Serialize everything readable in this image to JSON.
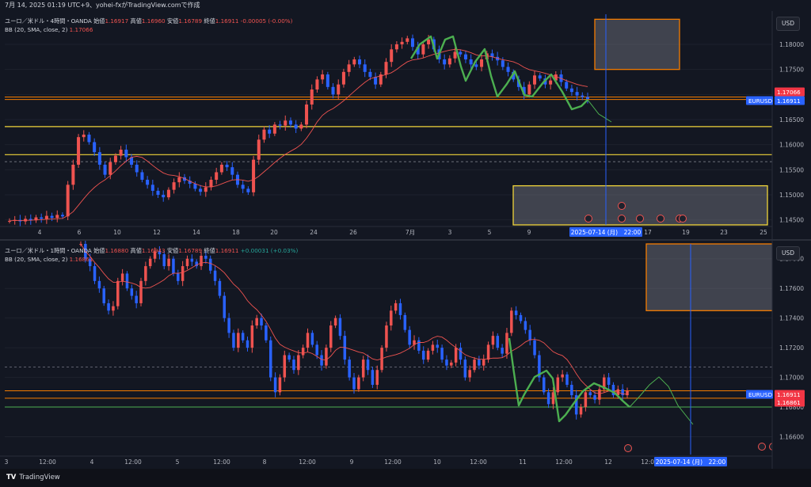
{
  "caption": "7月 14, 2025 01:19 UTC+9、yohei-fxがTradingView.comで作成",
  "footer_brand": "TradingView",
  "colors": {
    "bg": "#131722",
    "up": "#ef5350",
    "down": "#2962ff",
    "grid": "#1e222d",
    "orange": "#f57c00",
    "yellow": "#f0d43a",
    "green": "#4caf50",
    "axis_text": "#b2b5be",
    "cursor": "#2962ff"
  },
  "panels": [
    {
      "name": "4h",
      "header": {
        "symbol": "ユーロ／米ドル・4時間・OANDA",
        "o_label": "始値",
        "o": "1.16917",
        "h_label": "高値",
        "h": "1.16960",
        "l_label": "安値",
        "l": "1.16789",
        "c_label": "終値",
        "c": "1.16911",
        "chg": "-0.00005 (-0.00%)"
      },
      "indicator": {
        "label": "BB (20, SMA, close, 2)",
        "value": "1.17066"
      },
      "currency": "USD",
      "price_ticks": [
        "1.18000",
        "1.17500",
        "1.17000",
        "1.16500",
        "1.16000",
        "1.15500",
        "1.15000",
        "1.14500"
      ],
      "time_ticks": [
        "4",
        "6",
        "10",
        "12",
        "14",
        "18",
        "20",
        "24",
        "26",
        "7月",
        "3",
        "5",
        "9",
        "17",
        "19",
        "23",
        "25"
      ],
      "cursor_label": "2025-07-14 (月)　22:00",
      "price_labels": [
        {
          "text": "1.17066",
          "kind": "bb"
        },
        {
          "text": "EURUSD",
          "kind": "sym"
        },
        {
          "text": "1.16911",
          "kind": "price"
        }
      ]
    },
    {
      "name": "1h",
      "header": {
        "symbol": "ユーロ／米ドル・1時間・OANDA",
        "o_label": "始値",
        "o": "1.16880",
        "h_label": "高値",
        "h": "1.16943",
        "l_label": "安値",
        "l": "1.16789",
        "c_label": "終値",
        "c": "1.16911",
        "chg": "+0.00031 (+0.03%)"
      },
      "indicator": {
        "label": "BB (20, SMA, close, 2)",
        "value": "1.16861"
      },
      "currency": "USD",
      "price_ticks": [
        "1.17800",
        "1.17600",
        "1.17400",
        "1.17200",
        "1.17000",
        "1.16800",
        "1.16600"
      ],
      "time_ticks": [
        "3",
        "12:00",
        "4",
        "12:00",
        "5",
        "12:00",
        "8",
        "12:00",
        "9",
        "12:00",
        "10",
        "12:00",
        "11",
        "12:00",
        "12",
        "12:00"
      ],
      "cursor_label": "2025-07-14 (月)　22:00",
      "price_labels": [
        {
          "text": "EURUSD",
          "kind": "sym"
        },
        {
          "text": "1.16911",
          "kind": "price"
        },
        {
          "text": "1.16861",
          "kind": "bb"
        }
      ]
    }
  ],
  "chart_data": [
    {
      "type": "candlestick",
      "title": "ユーロ／米ドル・4時間・OANDA",
      "ylim": [
        1.144,
        1.186
      ],
      "hlines_orange": [
        1.169,
        1.1695
      ],
      "hlines_yellow": [
        1.1636,
        1.158
      ],
      "hline_dashed": 1.1566,
      "close_series": [
        1.1448,
        1.145,
        1.1447,
        1.1452,
        1.1449,
        1.1455,
        1.1452,
        1.1458,
        1.1454,
        1.146,
        1.1457,
        1.152,
        1.156,
        1.1615,
        1.162,
        1.1605,
        1.1585,
        1.156,
        1.154,
        1.1565,
        1.1578,
        1.159,
        1.1575,
        1.156,
        1.1545,
        1.153,
        1.152,
        1.1508,
        1.15,
        1.1495,
        1.151,
        1.1525,
        1.1535,
        1.1528,
        1.1522,
        1.1512,
        1.1506,
        1.1515,
        1.153,
        1.1545,
        1.156,
        1.1555,
        1.154,
        1.152,
        1.1512,
        1.1505,
        1.157,
        1.161,
        1.163,
        1.1622,
        1.164,
        1.1638,
        1.1648,
        1.164,
        1.1632,
        1.164,
        1.168,
        1.171,
        1.173,
        1.174,
        1.1715,
        1.17,
        1.172,
        1.1745,
        1.176,
        1.177,
        1.176,
        1.1745,
        1.1735,
        1.172,
        1.174,
        1.1765,
        1.179,
        1.18,
        1.1805,
        1.1812,
        1.1795,
        1.178,
        1.18,
        1.181,
        1.179,
        1.177,
        1.176,
        1.1772,
        1.1785,
        1.178,
        1.177,
        1.176,
        1.1755,
        1.177,
        1.1782,
        1.1775,
        1.1768,
        1.1755,
        1.1745,
        1.173,
        1.1715,
        1.17,
        1.172,
        1.1738,
        1.1732,
        1.172,
        1.1728,
        1.174,
        1.1725,
        1.1712,
        1.1705,
        1.1698,
        1.1695,
        1.1691
      ]
    },
    {
      "type": "candlestick",
      "title": "ユーロ／米ドル・1時間・OANDA",
      "ylim": [
        1.1648,
        1.179
      ],
      "hlines_orange": [
        1.1691,
        1.1686
      ],
      "hline_green": 1.168,
      "hline_dashed": 1.1707,
      "close_series": [
        1.179,
        1.178,
        1.1775,
        1.1765,
        1.176,
        1.175,
        1.1745,
        1.1748,
        1.1765,
        1.177,
        1.176,
        1.1755,
        1.175,
        1.1765,
        1.1775,
        1.178,
        1.1785,
        1.1783,
        1.1775,
        1.178,
        1.177,
        1.1765,
        1.1775,
        1.178,
        1.1778,
        1.1775,
        1.1782,
        1.178,
        1.1772,
        1.1765,
        1.1755,
        1.174,
        1.173,
        1.172,
        1.173,
        1.1725,
        1.172,
        1.1735,
        1.174,
        1.1735,
        1.1725,
        1.17,
        1.169,
        1.17,
        1.1715,
        1.1712,
        1.1705,
        1.1715,
        1.172,
        1.173,
        1.1722,
        1.1715,
        1.1708,
        1.172,
        1.1735,
        1.174,
        1.1728,
        1.1712,
        1.17,
        1.1692,
        1.17,
        1.1712,
        1.1705,
        1.1695,
        1.1705,
        1.172,
        1.1735,
        1.1745,
        1.175,
        1.1742,
        1.1732,
        1.1722,
        1.1725,
        1.1718,
        1.1712,
        1.1718,
        1.1722,
        1.172,
        1.1712,
        1.1708,
        1.171,
        1.172,
        1.1712,
        1.17,
        1.1705,
        1.1712,
        1.1708,
        1.1712,
        1.1722,
        1.1728,
        1.172,
        1.1716,
        1.173,
        1.1745,
        1.1742,
        1.1738,
        1.1732,
        1.1725,
        1.1715,
        1.17,
        1.169,
        1.1682,
        1.169,
        1.17,
        1.1702,
        1.1695,
        1.1688,
        1.1675,
        1.168,
        1.169,
        1.1688,
        1.1685,
        1.1692,
        1.17,
        1.1695,
        1.1688,
        1.1692,
        1.1688,
        1.1691
      ]
    }
  ]
}
